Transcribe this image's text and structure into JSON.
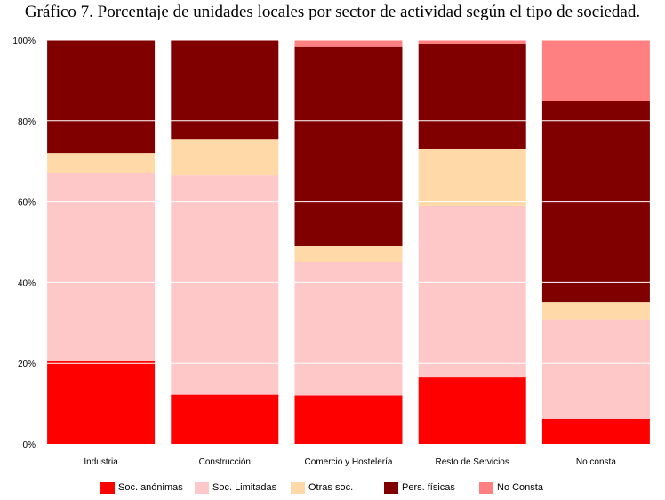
{
  "chart_data": {
    "type": "bar",
    "stacked": true,
    "title": "Gráfico 7. Porcentaje de unidades locales por sector de actividad según el tipo de sociedad.",
    "categories": [
      "Industria",
      "Construcción",
      "Comercio y Hostelería",
      "Resto de Servicios",
      "No consta"
    ],
    "ylim": [
      0,
      100
    ],
    "ytick_labels": [
      "0%",
      "20%",
      "40%",
      "60%",
      "80%",
      "100%"
    ],
    "ytick_values": [
      0,
      20,
      40,
      60,
      80,
      100
    ],
    "grid": true,
    "legend_position": "bottom",
    "series": [
      {
        "name": "Soc. anónimas",
        "color": "#ff0000",
        "values": [
          20.5,
          12.2,
          12.0,
          16.5,
          6.2
        ]
      },
      {
        "name": "Soc. Limitadas",
        "color": "#ffc8c8",
        "values": [
          46.5,
          54.3,
          33.0,
          42.5,
          24.5
        ]
      },
      {
        "name": "Otras soc.",
        "color": "#ffdaa8",
        "values": [
          5.0,
          9.0,
          4.0,
          14.0,
          4.3
        ]
      },
      {
        "name": "Pers. físicas",
        "color": "#800000",
        "values": [
          28.0,
          24.5,
          49.3,
          26.0,
          50.0
        ]
      },
      {
        "name": "No Consta",
        "color": "#ff8080",
        "values": [
          0.0,
          0.0,
          1.7,
          1.0,
          15.0
        ]
      }
    ]
  }
}
